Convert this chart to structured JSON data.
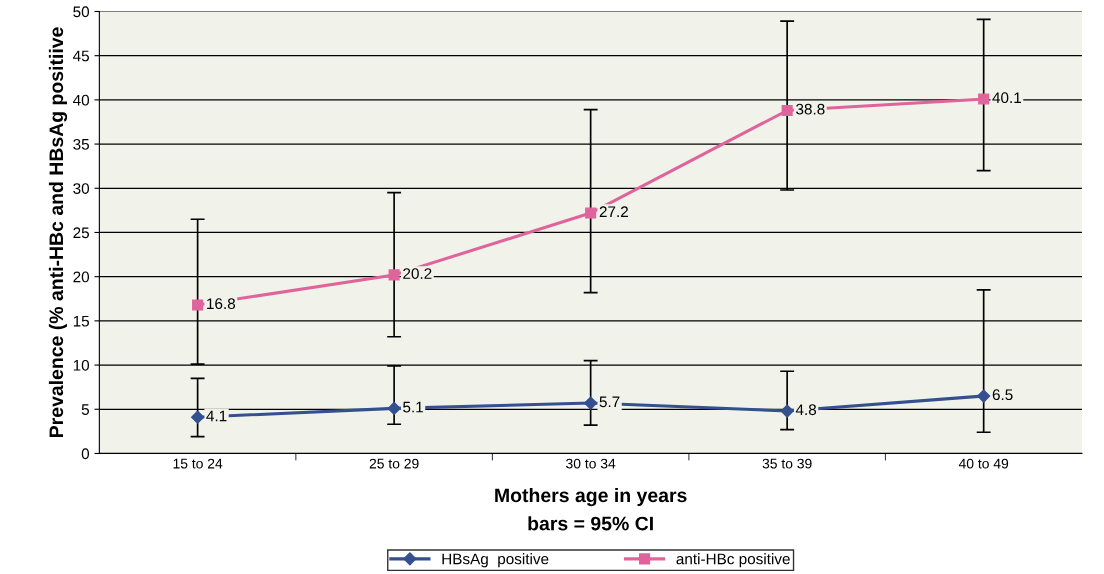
{
  "chart_data": {
    "type": "line",
    "xlabel": "Mothers age in years",
    "ylabel": "Prevalence (% anti-HBc and HBsAg positiive",
    "categories": [
      "15 to 24",
      "25 to 29",
      "30 to 34",
      "35 to 39",
      "40 to 49"
    ],
    "series": [
      {
        "name": "HBsAg  positive",
        "color": "#34508f",
        "marker": "diamond",
        "values": [
          4.1,
          5.1,
          5.7,
          4.8,
          6.5
        ],
        "errors": [
          [
            1.9,
            8.5
          ],
          [
            3.3,
            9.9
          ],
          [
            3.2,
            10.5
          ],
          [
            2.7,
            9.3
          ],
          [
            2.4,
            18.5
          ]
        ]
      },
      {
        "name": "anti-HBc positive",
        "color": "#e0649c",
        "marker": "square",
        "values": [
          16.8,
          20.2,
          27.2,
          38.8,
          40.1
        ],
        "errors": [
          [
            10.1,
            26.5
          ],
          [
            13.2,
            29.5
          ],
          [
            18.2,
            38.9
          ],
          [
            29.8,
            48.9
          ],
          [
            32.0,
            49.1
          ]
        ]
      }
    ],
    "ylim": [
      0,
      50
    ],
    "yticks": [
      0,
      5,
      10,
      15,
      20,
      25,
      30,
      35,
      40,
      45,
      50
    ],
    "grid": "y",
    "legend": "bottom",
    "data_labels": true,
    "line_style": "solid",
    "annotations": [
      "bars = 95% CI"
    ]
  }
}
